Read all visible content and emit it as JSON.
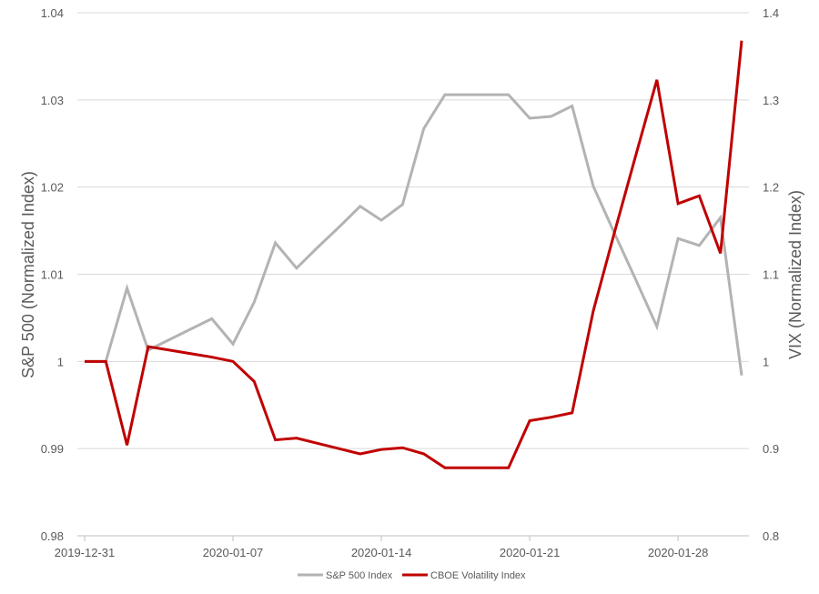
{
  "chart_data": {
    "type": "line",
    "title": "",
    "xlabel": "",
    "y_left_label": "S&P 500 (Normalized Index)",
    "y_right_label": "VIX (Normalized Index)",
    "y_left_lim": [
      0.98,
      1.04
    ],
    "y_left_ticks": [
      "0.98",
      "0.99",
      "1",
      "1.01",
      "1.02",
      "1.03",
      "1.04"
    ],
    "y_right_lim": [
      0.8,
      1.4
    ],
    "y_right_ticks": [
      "0.8",
      "0.9",
      "1",
      "1.1",
      "1.2",
      "1.3",
      "1.4"
    ],
    "x_ticks": [
      "2019-12-31",
      "2020-01-07",
      "2020-01-14",
      "2020-01-21",
      "2020-01-28"
    ],
    "grid": true,
    "legend_position": "bottom",
    "x": [
      "2019-12-31",
      "2020-01-01",
      "2020-01-02",
      "2020-01-03",
      "2020-01-04",
      "2020-01-05",
      "2020-01-06",
      "2020-01-07",
      "2020-01-08",
      "2020-01-09",
      "2020-01-10",
      "2020-01-11",
      "2020-01-12",
      "2020-01-13",
      "2020-01-14",
      "2020-01-15",
      "2020-01-16",
      "2020-01-17",
      "2020-01-18",
      "2020-01-19",
      "2020-01-20",
      "2020-01-21",
      "2020-01-22",
      "2020-01-23",
      "2020-01-24",
      "2020-01-25",
      "2020-01-26",
      "2020-01-27",
      "2020-01-28",
      "2020-01-29",
      "2020-01-30",
      "2020-01-31"
    ],
    "series": [
      {
        "name": "S&P 500 Index",
        "axis": "left",
        "color": "#b3b3b3",
        "values": [
          1.0,
          1.0,
          1.0084,
          1.0013,
          1.0025,
          1.0037,
          1.0049,
          1.002,
          1.0068,
          1.0136,
          1.0107,
          1.0131,
          1.0154,
          1.0178,
          1.0162,
          1.018,
          1.0267,
          1.0306,
          1.0306,
          1.0306,
          1.0306,
          1.0279,
          1.0281,
          1.0293,
          1.0201,
          1.0147,
          1.0094,
          1.004,
          1.0141,
          1.0133,
          1.0165,
          0.9984
        ]
      },
      {
        "name": "CBOE Volatility Index",
        "axis": "right",
        "color": "#c00000",
        "values": [
          1.0,
          1.0,
          0.904,
          1.017,
          1.013,
          1.009,
          1.005,
          1.0,
          0.977,
          0.91,
          0.912,
          0.906,
          0.9,
          0.894,
          0.899,
          0.901,
          0.894,
          0.878,
          0.878,
          0.878,
          0.878,
          0.932,
          0.936,
          0.941,
          1.058,
          1.148,
          1.236,
          1.323,
          1.181,
          1.19,
          1.124,
          1.368
        ]
      }
    ]
  }
}
